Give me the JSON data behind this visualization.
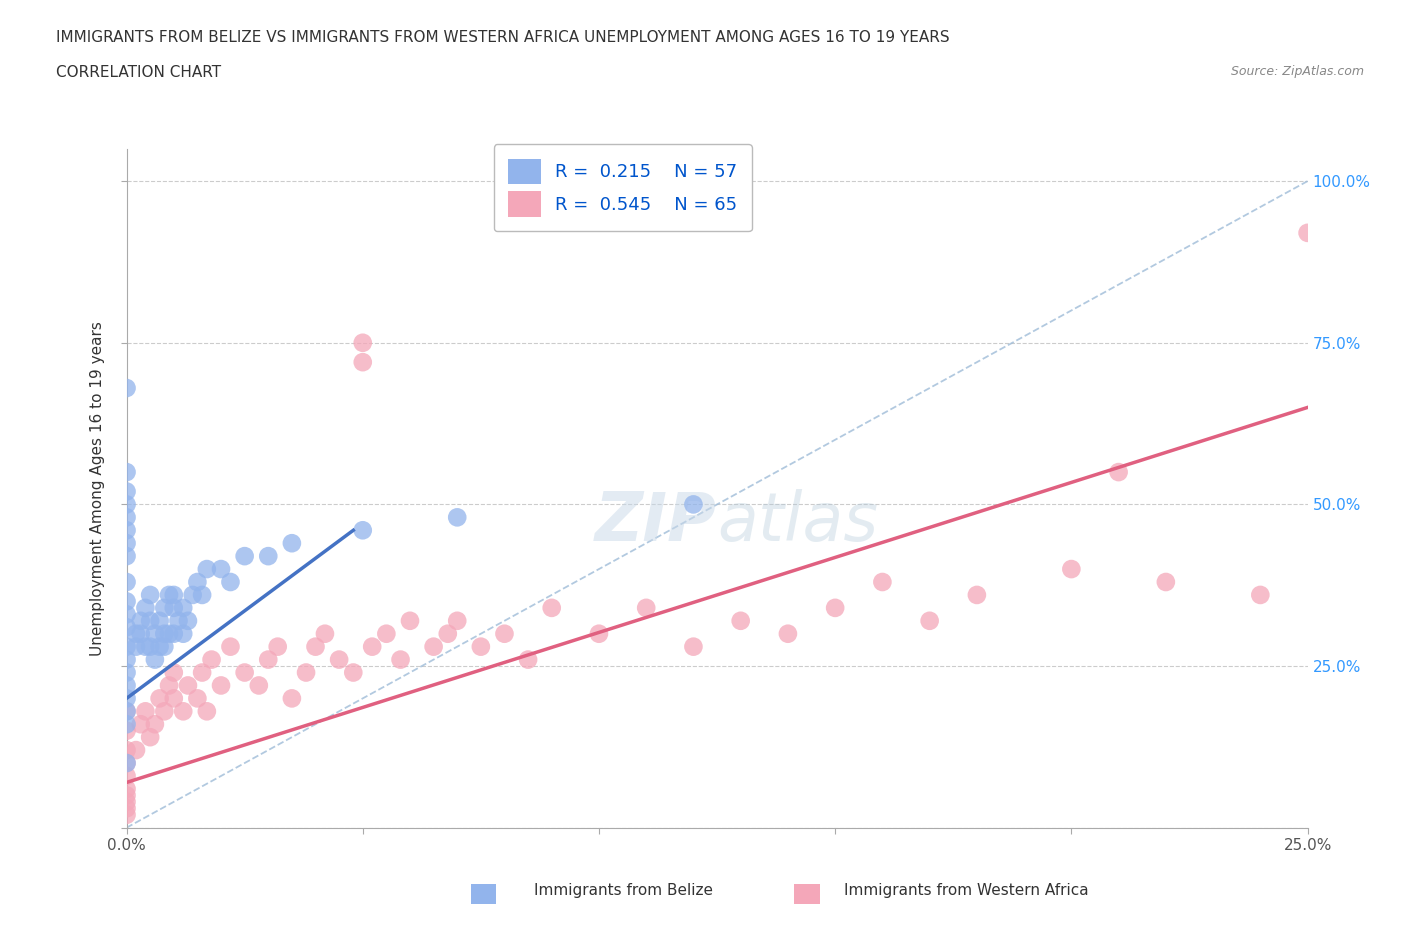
{
  "title_line1": "IMMIGRANTS FROM BELIZE VS IMMIGRANTS FROM WESTERN AFRICA UNEMPLOYMENT AMONG AGES 16 TO 19 YEARS",
  "title_line2": "CORRELATION CHART",
  "source": "Source: ZipAtlas.com",
  "ylabel": "Unemployment Among Ages 16 to 19 years",
  "xlim": [
    0.0,
    0.25
  ],
  "ylim": [
    0.0,
    1.05
  ],
  "belize_color": "#92b4ec",
  "western_africa_color": "#f4a7b9",
  "belize_line_color": "#4472c4",
  "western_africa_line_color": "#e06080",
  "diagonal_color": "#9fbcd8",
  "R_belize": 0.215,
  "N_belize": 57,
  "R_western_africa": 0.545,
  "N_western_africa": 65,
  "belize_scatter_x": [
    0.0,
    0.0,
    0.0,
    0.0,
    0.0,
    0.0,
    0.0,
    0.0,
    0.0,
    0.0,
    0.0,
    0.0,
    0.0,
    0.0,
    0.0,
    0.0,
    0.0,
    0.0,
    0.0,
    0.0,
    0.002,
    0.002,
    0.003,
    0.003,
    0.004,
    0.004,
    0.005,
    0.005,
    0.005,
    0.006,
    0.006,
    0.007,
    0.007,
    0.008,
    0.008,
    0.008,
    0.009,
    0.009,
    0.01,
    0.01,
    0.01,
    0.011,
    0.012,
    0.012,
    0.013,
    0.014,
    0.015,
    0.016,
    0.017,
    0.02,
    0.022,
    0.025,
    0.03,
    0.035,
    0.05,
    0.07,
    0.12
  ],
  "belize_scatter_y": [
    0.68,
    0.55,
    0.52,
    0.5,
    0.48,
    0.46,
    0.44,
    0.42,
    0.38,
    0.35,
    0.33,
    0.31,
    0.28,
    0.26,
    0.24,
    0.22,
    0.2,
    0.18,
    0.16,
    0.1,
    0.3,
    0.28,
    0.32,
    0.3,
    0.34,
    0.28,
    0.36,
    0.32,
    0.28,
    0.3,
    0.26,
    0.32,
    0.28,
    0.34,
    0.3,
    0.28,
    0.36,
    0.3,
    0.36,
    0.34,
    0.3,
    0.32,
    0.34,
    0.3,
    0.32,
    0.36,
    0.38,
    0.36,
    0.4,
    0.4,
    0.38,
    0.42,
    0.42,
    0.44,
    0.46,
    0.48,
    0.5
  ],
  "western_africa_scatter_x": [
    0.0,
    0.0,
    0.0,
    0.0,
    0.0,
    0.0,
    0.0,
    0.0,
    0.0,
    0.0,
    0.002,
    0.003,
    0.004,
    0.005,
    0.006,
    0.007,
    0.008,
    0.009,
    0.01,
    0.01,
    0.012,
    0.013,
    0.015,
    0.016,
    0.017,
    0.018,
    0.02,
    0.022,
    0.025,
    0.028,
    0.03,
    0.032,
    0.035,
    0.038,
    0.04,
    0.042,
    0.045,
    0.048,
    0.05,
    0.05,
    0.052,
    0.055,
    0.058,
    0.06,
    0.065,
    0.068,
    0.07,
    0.075,
    0.08,
    0.085,
    0.09,
    0.1,
    0.11,
    0.12,
    0.13,
    0.14,
    0.15,
    0.16,
    0.17,
    0.18,
    0.2,
    0.21,
    0.22,
    0.24,
    0.25
  ],
  "western_africa_scatter_y": [
    0.18,
    0.15,
    0.12,
    0.1,
    0.08,
    0.06,
    0.05,
    0.04,
    0.03,
    0.02,
    0.12,
    0.16,
    0.18,
    0.14,
    0.16,
    0.2,
    0.18,
    0.22,
    0.2,
    0.24,
    0.18,
    0.22,
    0.2,
    0.24,
    0.18,
    0.26,
    0.22,
    0.28,
    0.24,
    0.22,
    0.26,
    0.28,
    0.2,
    0.24,
    0.28,
    0.3,
    0.26,
    0.24,
    0.72,
    0.75,
    0.28,
    0.3,
    0.26,
    0.32,
    0.28,
    0.3,
    0.32,
    0.28,
    0.3,
    0.26,
    0.34,
    0.3,
    0.34,
    0.28,
    0.32,
    0.3,
    0.34,
    0.38,
    0.32,
    0.36,
    0.4,
    0.55,
    0.38,
    0.36,
    0.92
  ],
  "belize_line_x0": 0.0,
  "belize_line_y0": 0.2,
  "belize_line_x1": 0.048,
  "belize_line_y1": 0.46,
  "wa_line_x0": 0.0,
  "wa_line_y0": 0.07,
  "wa_line_x1": 0.25,
  "wa_line_y1": 0.65
}
